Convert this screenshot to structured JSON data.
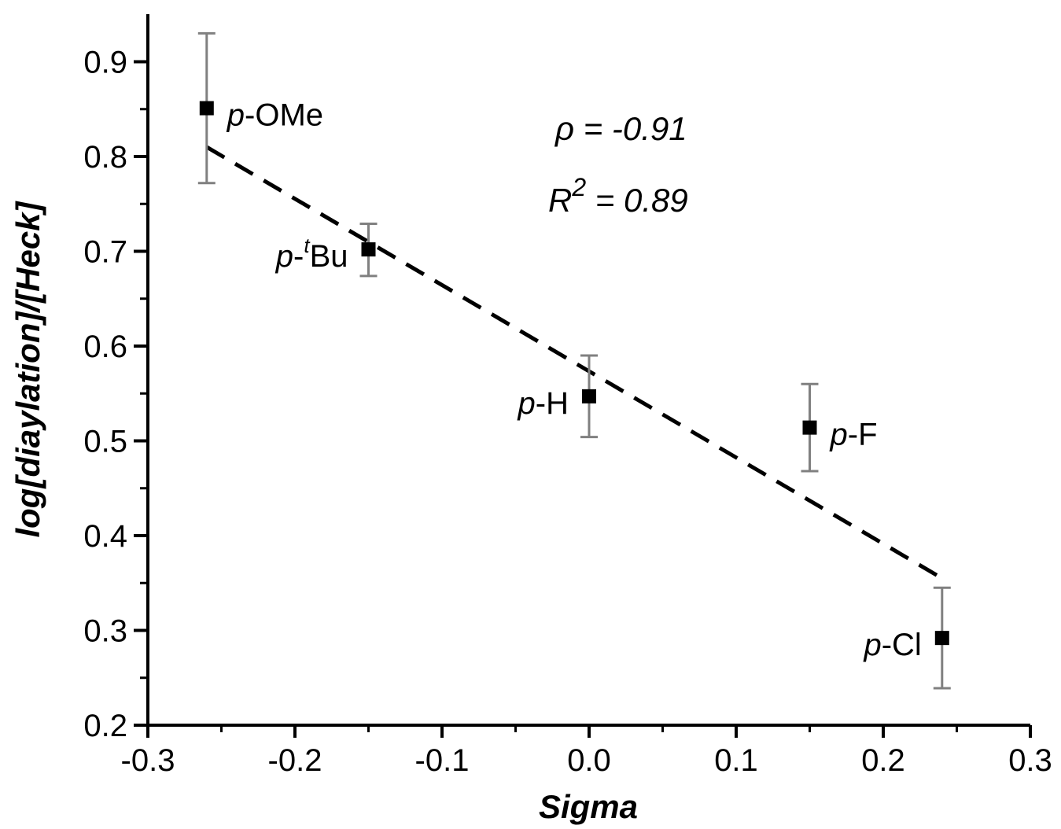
{
  "chart_data": {
    "type": "scatter",
    "xlabel": "Sigma",
    "ylabel": "log[diaylation]/[Heck]",
    "xlim": [
      -0.3,
      0.3
    ],
    "ylim": [
      0.2,
      0.95
    ],
    "x_ticks": [
      -0.3,
      -0.2,
      -0.1,
      0.0,
      0.1,
      0.2,
      0.3
    ],
    "x_tick_labels": [
      "-0.3",
      "-0.2",
      "-0.1",
      "0.0",
      "0.1",
      "0.2",
      "0.3"
    ],
    "y_ticks": [
      0.2,
      0.3,
      0.4,
      0.5,
      0.6,
      0.7,
      0.8,
      0.9
    ],
    "y_tick_labels": [
      "0.2",
      "0.3",
      "0.4",
      "0.5",
      "0.6",
      "0.7",
      "0.8",
      "0.9"
    ],
    "grid": false,
    "points": [
      {
        "prefix": "p",
        "dash": "-",
        "sup": "",
        "suffix": "OMe",
        "x": -0.26,
        "y": 0.851,
        "err_low": 0.772,
        "err_high": 0.93,
        "label_side": "right"
      },
      {
        "prefix": "p",
        "dash": "-",
        "sup": "t",
        "suffix": "Bu",
        "x": -0.15,
        "y": 0.702,
        "err_low": 0.674,
        "err_high": 0.729,
        "label_side": "left"
      },
      {
        "prefix": "p",
        "dash": "-",
        "sup": "",
        "suffix": "H",
        "x": 0.0,
        "y": 0.547,
        "err_low": 0.504,
        "err_high": 0.59,
        "label_side": "left"
      },
      {
        "prefix": "p",
        "dash": "-",
        "sup": "",
        "suffix": "F",
        "x": 0.15,
        "y": 0.514,
        "err_low": 0.468,
        "err_high": 0.56,
        "label_side": "right"
      },
      {
        "prefix": "p",
        "dash": "-",
        "sup": "",
        "suffix": "Cl",
        "x": 0.24,
        "y": 0.292,
        "err_low": 0.239,
        "err_high": 0.345,
        "label_side": "left"
      }
    ],
    "fit_line": {
      "x": [
        -0.26,
        0.24
      ],
      "y": [
        0.81,
        0.355
      ],
      "style": "dashed"
    },
    "annotations": {
      "rho_symbol": "ρ",
      "rho_text": " = -0.91",
      "r2_base": "R",
      "r2_sup": "2",
      "r2_text": " = 0.89"
    },
    "colors": {
      "marker": "#000000",
      "error_bar": "#808080",
      "fit_line": "#000000",
      "axis": "#000000"
    }
  }
}
